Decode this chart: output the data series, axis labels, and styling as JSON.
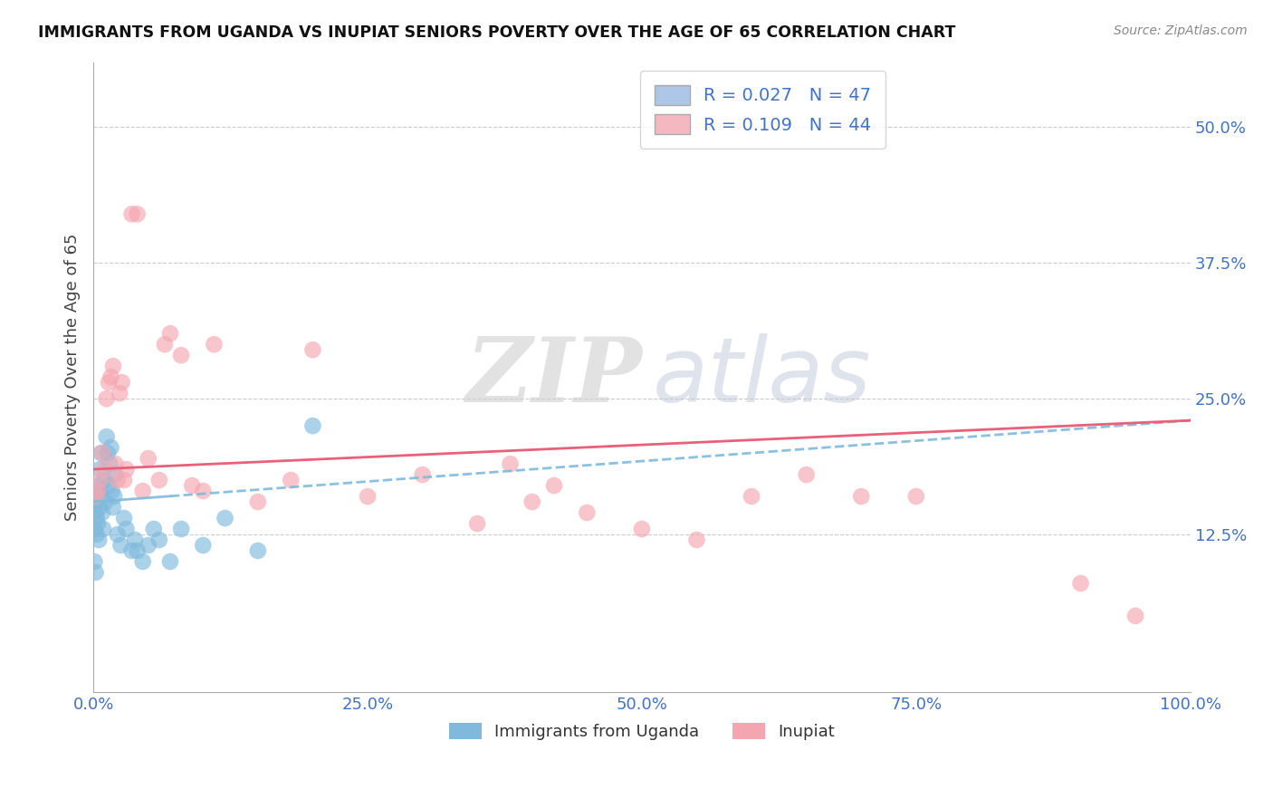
{
  "title": "IMMIGRANTS FROM UGANDA VS INUPIAT SENIORS POVERTY OVER THE AGE OF 65 CORRELATION CHART",
  "source": "Source: ZipAtlas.com",
  "ylabel": "Seniors Poverty Over the Age of 65",
  "legend_label1": "Immigrants from Uganda",
  "legend_label2": "Inupiat",
  "r1": 0.027,
  "n1": 47,
  "r2": 0.109,
  "n2": 44,
  "color1": "#7fbadd",
  "color2": "#f4a6b0",
  "trend_color1": "#7fbadd",
  "trend_color2": "#e8607a",
  "xlim": [
    0,
    1.0
  ],
  "ylim": [
    -0.02,
    0.56
  ],
  "yticks": [
    0.125,
    0.25,
    0.375,
    0.5
  ],
  "ytick_labels": [
    "12.5%",
    "25.0%",
    "37.5%",
    "50.0%"
  ],
  "xticks": [
    0.0,
    0.25,
    0.5,
    0.75,
    1.0
  ],
  "xtick_labels": [
    "0.0%",
    "25.0%",
    "50.0%",
    "75.0%",
    "100.0%"
  ],
  "blue_x": [
    0.001,
    0.001,
    0.001,
    0.002,
    0.002,
    0.002,
    0.003,
    0.003,
    0.003,
    0.004,
    0.004,
    0.005,
    0.005,
    0.006,
    0.006,
    0.007,
    0.007,
    0.008,
    0.009,
    0.01,
    0.011,
    0.012,
    0.013,
    0.014,
    0.015,
    0.016,
    0.017,
    0.018,
    0.019,
    0.02,
    0.022,
    0.025,
    0.028,
    0.03,
    0.035,
    0.038,
    0.04,
    0.045,
    0.05,
    0.055,
    0.06,
    0.07,
    0.08,
    0.1,
    0.12,
    0.15,
    0.2
  ],
  "blue_y": [
    0.155,
    0.13,
    0.1,
    0.16,
    0.145,
    0.09,
    0.155,
    0.14,
    0.125,
    0.17,
    0.135,
    0.165,
    0.12,
    0.185,
    0.15,
    0.2,
    0.16,
    0.145,
    0.13,
    0.175,
    0.155,
    0.215,
    0.2,
    0.17,
    0.19,
    0.205,
    0.165,
    0.15,
    0.16,
    0.18,
    0.125,
    0.115,
    0.14,
    0.13,
    0.11,
    0.12,
    0.11,
    0.1,
    0.115,
    0.13,
    0.12,
    0.1,
    0.13,
    0.115,
    0.14,
    0.11,
    0.225
  ],
  "pink_x": [
    0.002,
    0.004,
    0.006,
    0.008,
    0.01,
    0.012,
    0.014,
    0.016,
    0.018,
    0.02,
    0.022,
    0.024,
    0.026,
    0.028,
    0.03,
    0.035,
    0.04,
    0.045,
    0.05,
    0.06,
    0.065,
    0.07,
    0.08,
    0.09,
    0.1,
    0.11,
    0.15,
    0.18,
    0.2,
    0.25,
    0.3,
    0.35,
    0.38,
    0.4,
    0.42,
    0.45,
    0.5,
    0.55,
    0.6,
    0.65,
    0.7,
    0.75,
    0.9,
    0.95
  ],
  "pink_y": [
    0.16,
    0.165,
    0.175,
    0.2,
    0.185,
    0.25,
    0.265,
    0.27,
    0.28,
    0.19,
    0.175,
    0.255,
    0.265,
    0.175,
    0.185,
    0.42,
    0.42,
    0.165,
    0.195,
    0.175,
    0.3,
    0.31,
    0.29,
    0.17,
    0.165,
    0.3,
    0.155,
    0.175,
    0.295,
    0.16,
    0.18,
    0.135,
    0.19,
    0.155,
    0.17,
    0.145,
    0.13,
    0.12,
    0.16,
    0.18,
    0.16,
    0.16,
    0.08,
    0.05
  ],
  "watermark_zip": "ZIP",
  "watermark_atlas": "atlas",
  "bg_color": "#ffffff",
  "grid_color": "#cccccc",
  "tick_color": "#4472c4",
  "title_color": "#111111",
  "legend_box_color1": "#aec6e8",
  "legend_box_color2": "#f4b8c1"
}
